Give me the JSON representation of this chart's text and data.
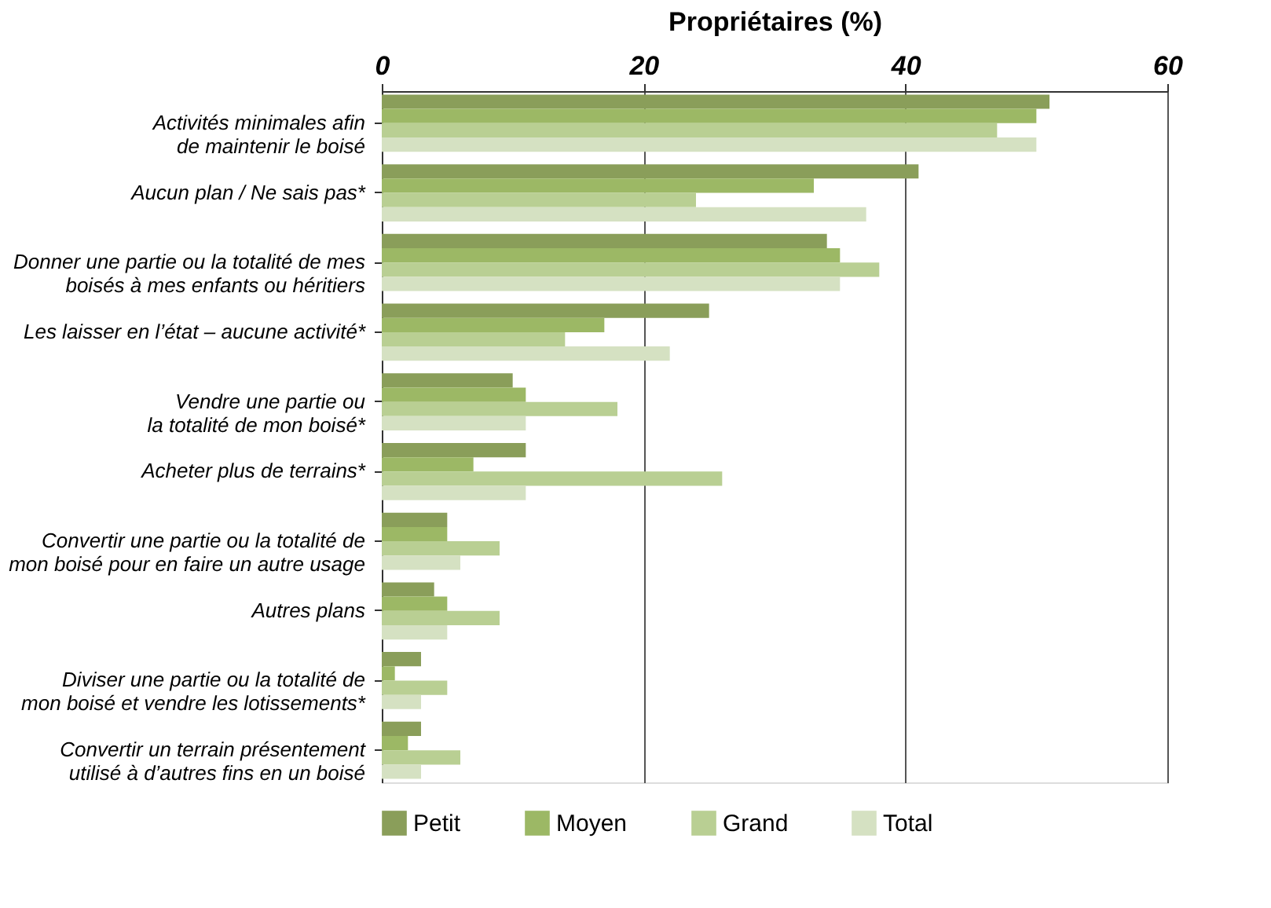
{
  "chart_data": {
    "type": "bar",
    "orientation": "horizontal",
    "xlabel": "Propriétaires (%)",
    "categories": [
      "Activités minimales afin\nde maintenir le boisé",
      "Aucun plan / Ne sais pas*",
      "Donner une partie ou la totalité de mes\nboisés à mes enfants ou héritiers",
      "Les laisser en l’état – aucune activité*",
      "Vendre une partie ou\nla totalité de mon boisé*",
      "Acheter plus de terrains*",
      "Convertir une partie ou la totalité de\nmon boisé pour en faire un autre usage",
      "Autres plans",
      "Diviser une partie ou la totalité de\nmon boisé et vendre les lotissements*",
      "Convertir un terrain présentement\nutilisé à d’autres fins en un boisé"
    ],
    "series": [
      {
        "name": "Petit",
        "color": "#8a9e5a",
        "values": [
          51,
          41,
          34,
          25,
          10,
          11,
          5,
          4,
          3,
          3
        ]
      },
      {
        "name": "Moyen",
        "color": "#9cb865",
        "values": [
          50,
          33,
          35,
          17,
          11,
          7,
          5,
          5,
          1,
          2
        ]
      },
      {
        "name": "Grand",
        "color": "#b9cf93",
        "values": [
          47,
          24,
          38,
          14,
          18,
          26,
          9,
          9,
          5,
          6
        ]
      },
      {
        "name": "Total",
        "color": "#d5e1c2",
        "values": [
          50,
          37,
          35,
          22,
          11,
          11,
          6,
          5,
          3,
          3
        ]
      }
    ],
    "xlim": [
      0,
      60
    ],
    "xticks": [
      0,
      20,
      40,
      60
    ],
    "grid": "x",
    "legend": "bottom"
  }
}
